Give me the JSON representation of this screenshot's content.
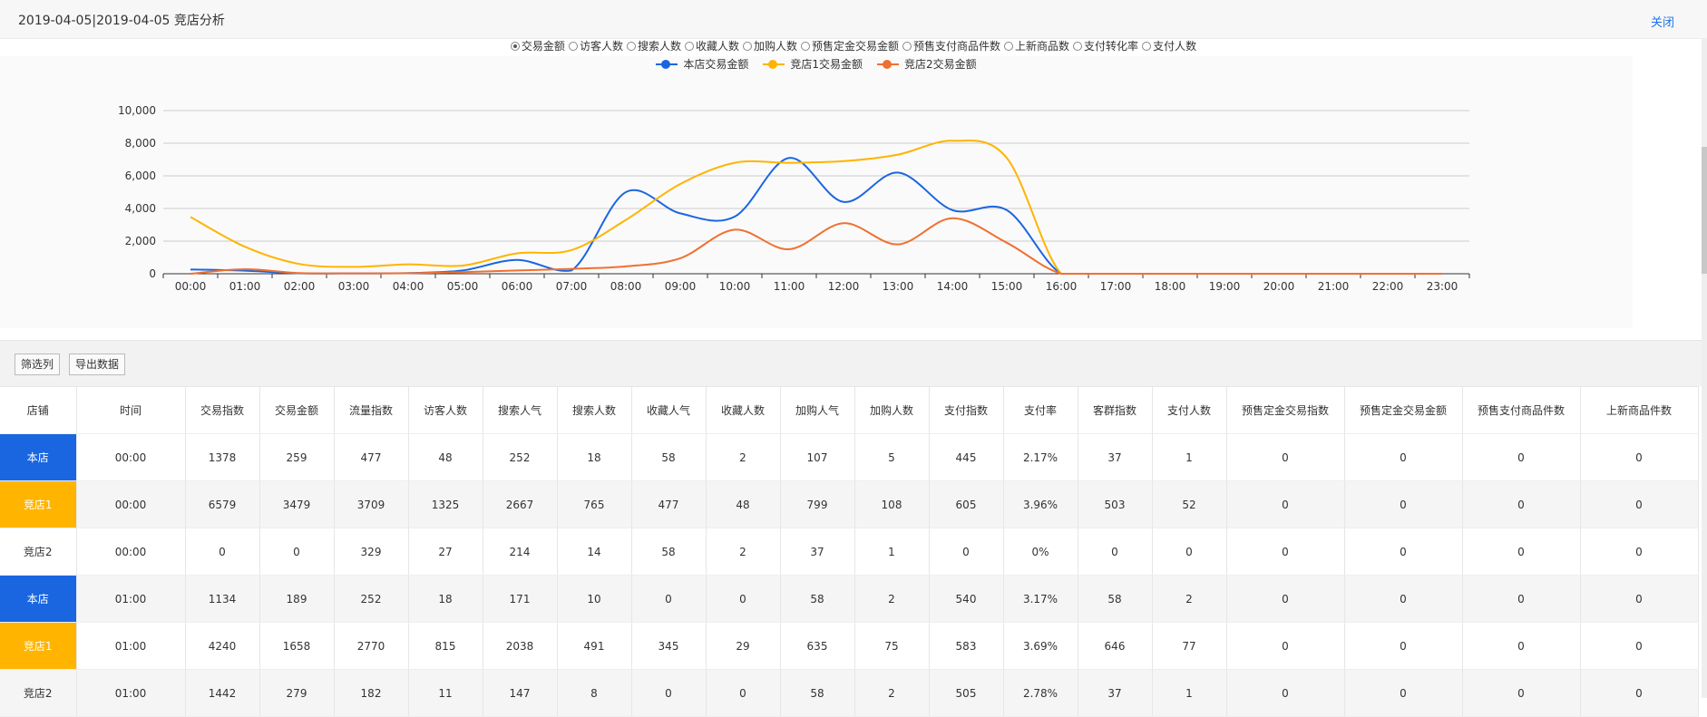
{
  "header": {
    "title": "2019-04-05|2019-04-05 竞店分析",
    "close_label": "关闭"
  },
  "metric_options": [
    {
      "label": "交易金额",
      "selected": true
    },
    {
      "label": "访客人数",
      "selected": false
    },
    {
      "label": "搜索人数",
      "selected": false
    },
    {
      "label": "收藏人数",
      "selected": false
    },
    {
      "label": "加购人数",
      "selected": false
    },
    {
      "label": "预售定金交易金额",
      "selected": false
    },
    {
      "label": "预售支付商品件数",
      "selected": false
    },
    {
      "label": "上新商品数",
      "selected": false
    },
    {
      "label": "支付转化率",
      "selected": false
    },
    {
      "label": "支付人数",
      "selected": false
    }
  ],
  "colors": {
    "own": "#1a66e0",
    "rival1": "#ffb400",
    "rival2": "#f07030"
  },
  "chart_data": {
    "type": "line",
    "x": [
      "00:00",
      "01:00",
      "02:00",
      "03:00",
      "04:00",
      "05:00",
      "06:00",
      "07:00",
      "08:00",
      "09:00",
      "10:00",
      "11:00",
      "12:00",
      "13:00",
      "14:00",
      "15:00",
      "16:00",
      "17:00",
      "18:00",
      "19:00",
      "20:00",
      "21:00",
      "22:00",
      "23:00"
    ],
    "yticks": [
      "0",
      "2,000",
      "4,000",
      "6,000",
      "8,000",
      "10,000"
    ],
    "ylim": [
      0,
      10000
    ],
    "grid": true,
    "legend_position": "top",
    "series": [
      {
        "name": "本店交易金额",
        "color": "#1a66e0",
        "values": [
          259,
          189,
          30,
          20,
          40,
          200,
          850,
          200,
          5000,
          3700,
          3500,
          7100,
          4400,
          6200,
          3900,
          3900,
          0,
          0,
          0,
          0,
          0,
          0,
          0,
          0
        ]
      },
      {
        "name": "竞店1交易金额",
        "color": "#ffb400",
        "values": [
          3479,
          1658,
          600,
          420,
          580,
          500,
          1250,
          1450,
          3300,
          5500,
          6800,
          6800,
          6900,
          7300,
          8150,
          7100,
          0,
          0,
          0,
          0,
          0,
          0,
          0,
          0
        ]
      },
      {
        "name": "竞店2交易金额",
        "color": "#f07030",
        "values": [
          0,
          279,
          40,
          20,
          30,
          100,
          200,
          300,
          450,
          950,
          2700,
          1500,
          3100,
          1800,
          3400,
          1900,
          0,
          0,
          0,
          0,
          0,
          0,
          0,
          0
        ]
      }
    ]
  },
  "toolbar": {
    "filter_label": "筛选列",
    "export_label": "导出数据"
  },
  "table": {
    "headers": [
      "店铺",
      "时间",
      "交易指数",
      "交易金额",
      "流量指数",
      "访客人数",
      "搜索人气",
      "搜索人数",
      "收藏人气",
      "收藏人数",
      "加购人气",
      "加购人数",
      "支付指数",
      "支付率",
      "客群指数",
      "支付人数",
      "预售定金交易指数",
      "预售定金交易金额",
      "预售支付商品件数",
      "上新商品件数"
    ],
    "rows": [
      {
        "shop": "本店",
        "color": "blue",
        "cells": [
          "00:00",
          "1378",
          "259",
          "477",
          "48",
          "252",
          "18",
          "58",
          "2",
          "107",
          "5",
          "445",
          "2.17%",
          "37",
          "1",
          "0",
          "0",
          "0",
          "0"
        ]
      },
      {
        "shop": "竞店1",
        "color": "yellow",
        "cells": [
          "00:00",
          "6579",
          "3479",
          "3709",
          "1325",
          "2667",
          "765",
          "477",
          "48",
          "799",
          "108",
          "605",
          "3.96%",
          "503",
          "52",
          "0",
          "0",
          "0",
          "0"
        ]
      },
      {
        "shop": "竞店2",
        "color": "none",
        "cells": [
          "00:00",
          "0",
          "0",
          "329",
          "27",
          "214",
          "14",
          "58",
          "2",
          "37",
          "1",
          "0",
          "0%",
          "0",
          "0",
          "0",
          "0",
          "0",
          "0"
        ]
      },
      {
        "shop": "本店",
        "color": "blue",
        "cells": [
          "01:00",
          "1134",
          "189",
          "252",
          "18",
          "171",
          "10",
          "0",
          "0",
          "58",
          "2",
          "540",
          "3.17%",
          "58",
          "2",
          "0",
          "0",
          "0",
          "0"
        ]
      },
      {
        "shop": "竞店1",
        "color": "yellow",
        "cells": [
          "01:00",
          "4240",
          "1658",
          "2770",
          "815",
          "2038",
          "491",
          "345",
          "29",
          "635",
          "75",
          "583",
          "3.69%",
          "646",
          "77",
          "0",
          "0",
          "0",
          "0"
        ]
      },
      {
        "shop": "竞店2",
        "color": "none",
        "cells": [
          "01:00",
          "1442",
          "279",
          "182",
          "11",
          "147",
          "8",
          "0",
          "0",
          "58",
          "2",
          "505",
          "2.78%",
          "37",
          "1",
          "0",
          "0",
          "0",
          "0"
        ]
      }
    ]
  }
}
